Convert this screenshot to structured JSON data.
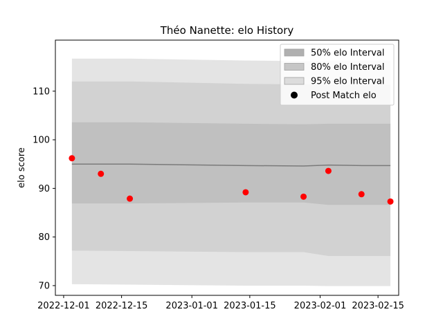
{
  "chart_data": {
    "type": "scatter",
    "title": "Théo Nanette: elo History",
    "xlabel": "",
    "ylabel": "elo score",
    "xlim": [
      "2022-11-29",
      "2023-02-20"
    ],
    "ylim": [
      68,
      120.5
    ],
    "x_ticks": [
      "2022-12-01",
      "2022-12-15",
      "2023-01-01",
      "2023-01-15",
      "2023-02-01",
      "2023-02-15"
    ],
    "y_ticks": [
      70,
      80,
      90,
      100,
      110
    ],
    "grid": false,
    "legend_position": "top-right",
    "legend": [
      {
        "label": "50% elo Interval",
        "color": "#b0b0b0"
      },
      {
        "label": "80% elo Interval",
        "color": "#c6c6c6"
      },
      {
        "label": "95% elo Interval",
        "color": "#dcdcdc"
      },
      {
        "label": "Post Match elo",
        "color": "#000000"
      }
    ],
    "bands": {
      "x": [
        "2022-12-03",
        "2022-12-17",
        "2023-01-14",
        "2023-01-28",
        "2023-02-03",
        "2023-02-11",
        "2023-02-18"
      ],
      "mean": [
        95.0,
        95.0,
        94.7,
        94.6,
        94.8,
        94.7,
        94.7
      ],
      "interval_95": {
        "lower": [
          70.3,
          70.2,
          70.0,
          70.0,
          69.9,
          69.9,
          69.9
        ],
        "upper": [
          116.7,
          116.7,
          116.3,
          116.2,
          116.3,
          116.3,
          116.3
        ]
      },
      "interval_80": {
        "lower": [
          77.2,
          77.1,
          76.9,
          76.9,
          76.1,
          76.1,
          76.1
        ],
        "upper": [
          112.0,
          112.0,
          111.5,
          111.4,
          111.3,
          111.3,
          111.3
        ]
      },
      "interval_50": {
        "lower": [
          86.9,
          86.9,
          87.1,
          87.1,
          86.6,
          86.6,
          86.6
        ],
        "upper": [
          103.6,
          103.6,
          103.3,
          103.2,
          103.3,
          103.3,
          103.3
        ]
      }
    },
    "series": [
      {
        "name": "Post Match elo",
        "color": "#ff0000",
        "x": [
          "2022-12-03",
          "2022-12-10",
          "2022-12-17",
          "2023-01-14",
          "2023-01-28",
          "2023-02-03",
          "2023-02-11",
          "2023-02-18"
        ],
        "y": [
          96.2,
          93.0,
          87.9,
          89.2,
          88.3,
          93.6,
          88.8,
          87.3
        ]
      }
    ]
  }
}
